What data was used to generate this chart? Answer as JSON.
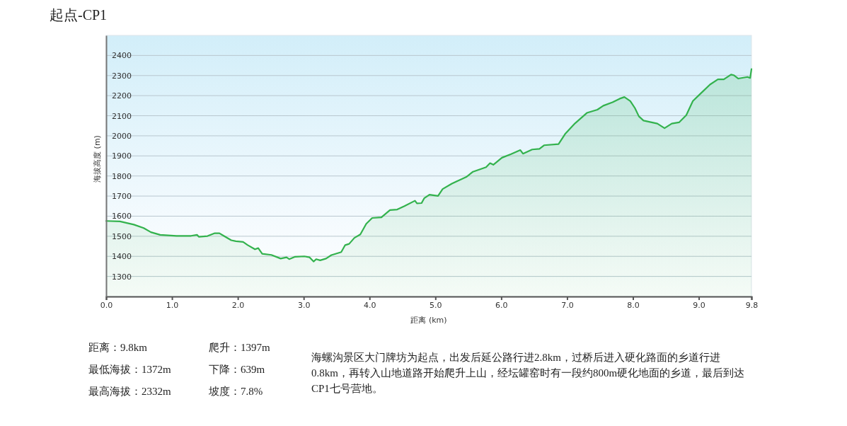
{
  "chart_data": {
    "type": "area",
    "title": "起点-CP1",
    "xlabel": "距离 (km)",
    "ylabel": "海拔高度 (m)",
    "xlim": [
      0,
      9.8
    ],
    "xticks": [
      {
        "value": 0,
        "label": "0.0"
      },
      {
        "value": 1,
        "label": "1.0"
      },
      {
        "value": 2,
        "label": "2.0"
      },
      {
        "value": 3,
        "label": "3.0"
      },
      {
        "value": 4,
        "label": "4.0"
      },
      {
        "value": 5,
        "label": "5.0"
      },
      {
        "value": 6,
        "label": "6.0"
      },
      {
        "value": 7,
        "label": "7.0"
      },
      {
        "value": 8,
        "label": "8.0"
      },
      {
        "value": 9,
        "label": "9.0"
      },
      {
        "value": 9.8,
        "label": "9.8"
      }
    ],
    "ylim": [
      1200,
      2500
    ],
    "yticks": [
      1300,
      1400,
      1500,
      1600,
      1700,
      1800,
      1900,
      2000,
      2100,
      2200,
      2300,
      2400
    ],
    "grid": "y",
    "series": [
      {
        "color": "#33b24d",
        "x": [
          0,
          0.21,
          0.42,
          0.57,
          0.68,
          0.82,
          1.07,
          1.29,
          1.38,
          1.41,
          1.54,
          1.65,
          1.72,
          1.79,
          1.9,
          1.97,
          2.08,
          2.15,
          2.26,
          2.31,
          2.37,
          2.51,
          2.65,
          2.74,
          2.78,
          2.87,
          3.01,
          3.09,
          3.15,
          3.19,
          3.25,
          3.34,
          3.42,
          3.57,
          3.63,
          3.69,
          3.77,
          3.86,
          3.95,
          4.04,
          4.18,
          4.31,
          4.42,
          4.53,
          4.69,
          4.72,
          4.79,
          4.83,
          4.91,
          5.04,
          5.11,
          5.25,
          5.36,
          5.47,
          5.57,
          5.77,
          5.83,
          5.88,
          6.01,
          6.15,
          6.29,
          6.33,
          6.47,
          6.58,
          6.65,
          6.87,
          6.97,
          7.12,
          7.3,
          7.46,
          7.55,
          7.69,
          7.8,
          7.87,
          7.96,
          8.03,
          8.09,
          8.16,
          8.37,
          8.48,
          8.59,
          8.7,
          8.81,
          8.91,
          9.02,
          9.17,
          9.29,
          9.38,
          9.49,
          9.53,
          9.6,
          9.74,
          9.78,
          9.8
        ],
        "values": [
          1576,
          1574,
          1558,
          1541,
          1520,
          1507,
          1502,
          1502,
          1507,
          1497,
          1501,
          1515,
          1515,
          1501,
          1480,
          1475,
          1472,
          1456,
          1435,
          1441,
          1413,
          1407,
          1389,
          1395,
          1386,
          1398,
          1400,
          1395,
          1374,
          1386,
          1380,
          1389,
          1406,
          1421,
          1456,
          1462,
          1492,
          1509,
          1562,
          1591,
          1594,
          1630,
          1633,
          1650,
          1677,
          1664,
          1665,
          1689,
          1707,
          1701,
          1735,
          1762,
          1779,
          1795,
          1821,
          1844,
          1864,
          1856,
          1891,
          1909,
          1929,
          1911,
          1932,
          1935,
          1953,
          1959,
          2009,
          2062,
          2114,
          2130,
          2150,
          2167,
          2185,
          2193,
          2173,
          2138,
          2097,
          2076,
          2061,
          2038,
          2061,
          2067,
          2103,
          2173,
          2208,
          2255,
          2281,
          2281,
          2305,
          2302,
          2285,
          2293,
          2288,
          2332
        ]
      }
    ],
    "annotations": [
      "距离：9.8km",
      "爬升：1397m",
      "最低海拔：1372m",
      "下降：639m",
      "最高海拔：2332m",
      "坡度：7.8%",
      "海螺沟景区大门牌坊为起点，出发后延公路行进2.8km，过桥后进入硬化路面的乡道行进0.8km，再转入山地道路开始爬升上山，经坛罐窑时有一段约800m硬化地面的乡道，最后到达CP1七号营地。"
    ]
  }
}
